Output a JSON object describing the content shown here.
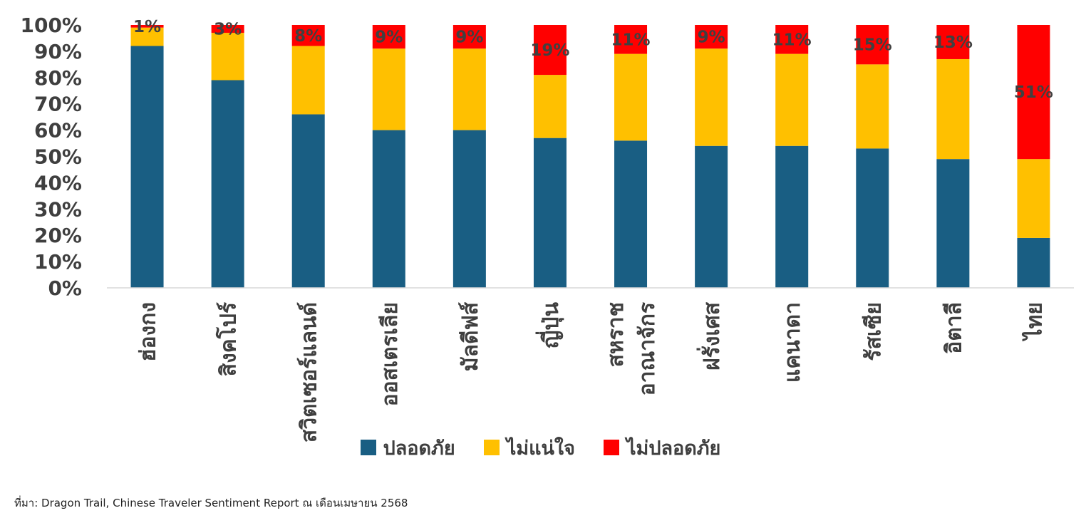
{
  "chart_data": {
    "type": "bar",
    "stacked": true,
    "percent": true,
    "categories": [
      "ฮ่องกง",
      "สิงคโปร์",
      "สวิตเซอร์แลนด์",
      "ออสเตรเลีย",
      "มัลดีฟส์",
      "ญี่ปุ่น",
      "สหราชอาณาจักร",
      "ฝรั่งเศส",
      "แคนาดา",
      "รัสเซีย",
      "อิตาลี",
      "ไทย"
    ],
    "category_lines": [
      [
        "ฮ่องกง"
      ],
      [
        "สิงคโปร์"
      ],
      [
        "สวิตเซอร์แลนด์"
      ],
      [
        "ออสเตรเลีย"
      ],
      [
        "มัลดีฟส์"
      ],
      [
        "ญี่ปุ่น"
      ],
      [
        "สหราช",
        "อาณาจักร"
      ],
      [
        "ฝรั่งเศส"
      ],
      [
        "แคนาดา"
      ],
      [
        "รัสเซีย"
      ],
      [
        "อิตาลี"
      ],
      [
        "ไทย"
      ]
    ],
    "series": [
      {
        "name": "ปลอดภัย",
        "color": "#195e83",
        "values": [
          92,
          79,
          66,
          60,
          60,
          57,
          56,
          54,
          54,
          53,
          49,
          19
        ]
      },
      {
        "name": "ไม่แน่ใจ",
        "color": "#ffc000",
        "values": [
          7,
          18,
          26,
          31,
          31,
          24,
          33,
          37,
          35,
          32,
          38,
          30
        ]
      },
      {
        "name": "ไม่ปลอดภัย",
        "color": "#ff0000",
        "values": [
          1,
          3,
          8,
          9,
          9,
          19,
          11,
          9,
          11,
          15,
          13,
          51
        ]
      }
    ],
    "data_labels": [
      "1%",
      "3%",
      "8%",
      "9%",
      "9%",
      "19%",
      "11%",
      "9%",
      "11%",
      "15%",
      "13%",
      "51%"
    ],
    "y_ticks": [
      "0%",
      "10%",
      "20%",
      "30%",
      "40%",
      "50%",
      "60%",
      "70%",
      "80%",
      "90%",
      "100%"
    ],
    "ylim": [
      0,
      100
    ],
    "grid": false,
    "legend_position": "bottom"
  },
  "source": "ที่มา: Dragon Trail, Chinese Traveler Sentiment Report ณ เดือนเมษายน 2568"
}
